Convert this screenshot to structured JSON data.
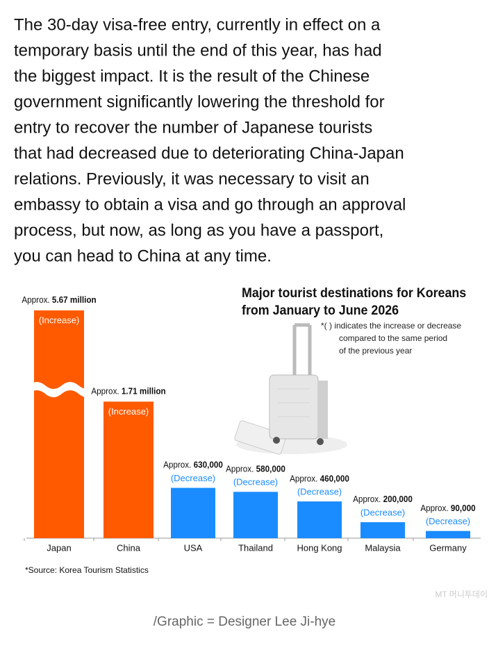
{
  "paragraph": [
    "The 30-day visa-free entry, currently in effect on a",
    "temporary basis until the end of this year, has had",
    "the biggest impact. It is the result of the Chinese",
    "government significantly lowering the threshold for",
    "entry to recover the number of Japanese tourists",
    "that had decreased due to deteriorating China-Japan",
    "relations. Previously, it was necessary to visit an",
    "embassy to obtain a visa and go through an approval",
    "process, but now, as long as you have a passport,",
    "you can head to China at any time."
  ],
  "chart_data": {
    "type": "bar",
    "title": [
      "Major tourist destinations for Koreans",
      "from January to June 2026"
    ],
    "note": [
      "*( ) indicates the increase or decrease",
      "compared to the same period",
      "of the previous year"
    ],
    "categories": [
      "Japan",
      "China",
      "USA",
      "Thailand",
      "Hong Kong",
      "Malaysia",
      "Germany"
    ],
    "values": [
      5670000,
      1710000,
      630000,
      580000,
      460000,
      200000,
      90000
    ],
    "value_prefix": "Approx.",
    "value_labels": [
      "5.67 million",
      "1.71 million",
      "630,000",
      "580,000",
      "460,000",
      "200,000",
      "90,000"
    ],
    "change_labels": [
      "(Increase)",
      "(Increase)",
      "(Decrease)",
      "(Decrease)",
      "(Decrease)",
      "(Decrease)",
      "(Decrease)"
    ],
    "colors": [
      "#ff5a00",
      "#ff5a00",
      "#1a8cff",
      "#1a8cff",
      "#1a8cff",
      "#1a8cff",
      "#1a8cff"
    ],
    "ylim": [
      0,
      2000000
    ],
    "axis_break": true,
    "source": "*Source: Korea Tourism Statistics"
  },
  "watermark": "MT 머니투데이",
  "credit": "/Graphic = Designer Lee Ji-hye"
}
